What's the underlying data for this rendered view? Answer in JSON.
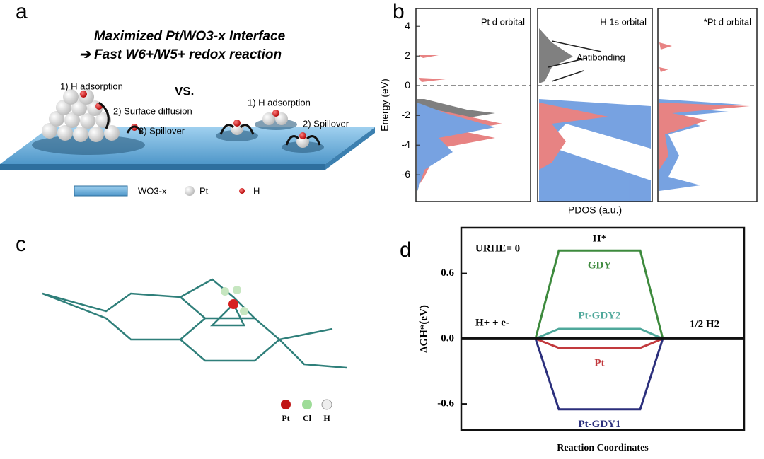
{
  "panels": {
    "a": {
      "label": "a",
      "title": "Maximized Pt/WO3-x Interface",
      "subtitle": "➔ Fast W6+/W5+ redox reaction",
      "left_steps": [
        "1) H adsorption",
        "2) Surface diffusion",
        "3) Spillover"
      ],
      "vs": "VS.",
      "right_steps": [
        "1) H adsorption",
        "2) Spillover"
      ],
      "legend": [
        "WO3-x",
        "Pt",
        "H"
      ]
    },
    "b": {
      "label": "b"
    },
    "c": {
      "label": "c",
      "legend": [
        "Pt",
        "Cl",
        "H"
      ]
    },
    "d": {
      "label": "d"
    }
  },
  "chart_data": [
    {
      "type": "area",
      "subplot_titles": [
        "Pt d orbital",
        "H 1s orbital",
        "*Pt d orbital"
      ],
      "ylabel": "Energy (eV)",
      "xlabel": "PDOS (a.u.)",
      "annotation": "Antibonding",
      "ylim": [
        -7.8,
        5.2
      ],
      "yticks": [
        4,
        2,
        0,
        -2,
        -4,
        -6
      ]
    },
    {
      "type": "line",
      "ylabel": "ΔGH*(eV)",
      "xlabel": "Reaction Coordinates",
      "annotation": "URHE= 0",
      "state_labels": [
        "H+ + e-",
        "H*",
        "1/2 H2"
      ],
      "ylim": [
        -0.84,
        1.02
      ],
      "yticks": [
        {
          "value": 0.6,
          "label": "0.6"
        },
        {
          "value": 0,
          "label": "0.0"
        },
        {
          "value": -0.6,
          "label": "-0.6"
        }
      ],
      "series": [
        {
          "name": "GDY",
          "color": "#3d8a3d",
          "values": [
            0.81
          ]
        },
        {
          "name": "Pt-GDY2",
          "color": "#4fa89b",
          "values": [
            0.09
          ]
        },
        {
          "name": "Pt",
          "color": "#c23a3e",
          "values": [
            -0.085
          ]
        },
        {
          "name": "Pt-GDY1",
          "color": "#2b2f7c",
          "values": [
            -0.65
          ]
        }
      ]
    }
  ]
}
